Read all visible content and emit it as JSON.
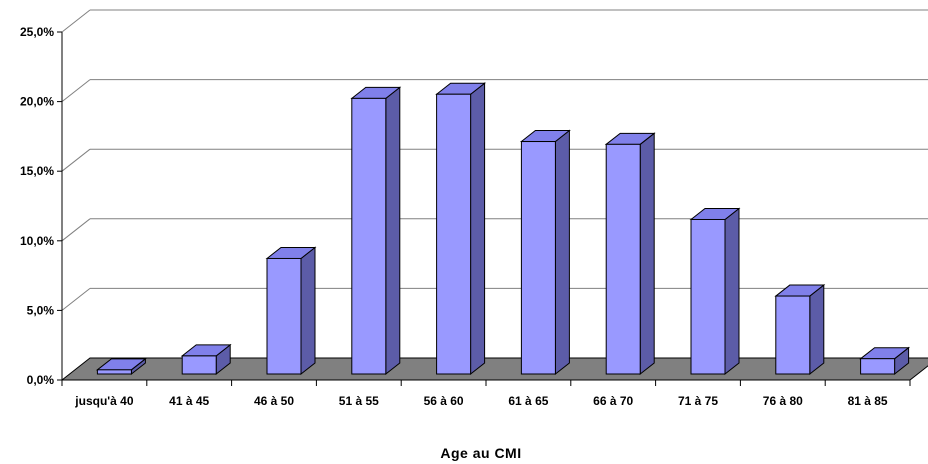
{
  "chart_data": {
    "type": "bar",
    "style": "3d-column",
    "xlabel": "Age au CMI",
    "ylabel": "",
    "title": "",
    "categories": [
      "jusqu'à 40",
      "41 à 45",
      "46 à 50",
      "51 à 55",
      "56 à 60",
      "61 à 65",
      "66 à 70",
      "71 à 75",
      "76 à 80",
      "81 à 85"
    ],
    "series": [
      {
        "values": [
          0.3,
          1.3,
          8.3,
          19.8,
          20.1,
          16.7,
          16.5,
          11.1,
          5.6,
          1.1
        ]
      }
    ],
    "ylim": [
      0,
      25
    ],
    "yticks": [
      0,
      5,
      10,
      15,
      20,
      25
    ],
    "ytick_labels": [
      "0,0%",
      "5,0%",
      "10,0%",
      "15,0%",
      "20,0%",
      "25,0%"
    ],
    "grid": true,
    "legend": "none",
    "colors": {
      "bar_front": "#9999ff",
      "bar_top": "#8080ea",
      "bar_side": "#5c5ca8",
      "floor": "#808080",
      "grid": "#808080"
    }
  }
}
